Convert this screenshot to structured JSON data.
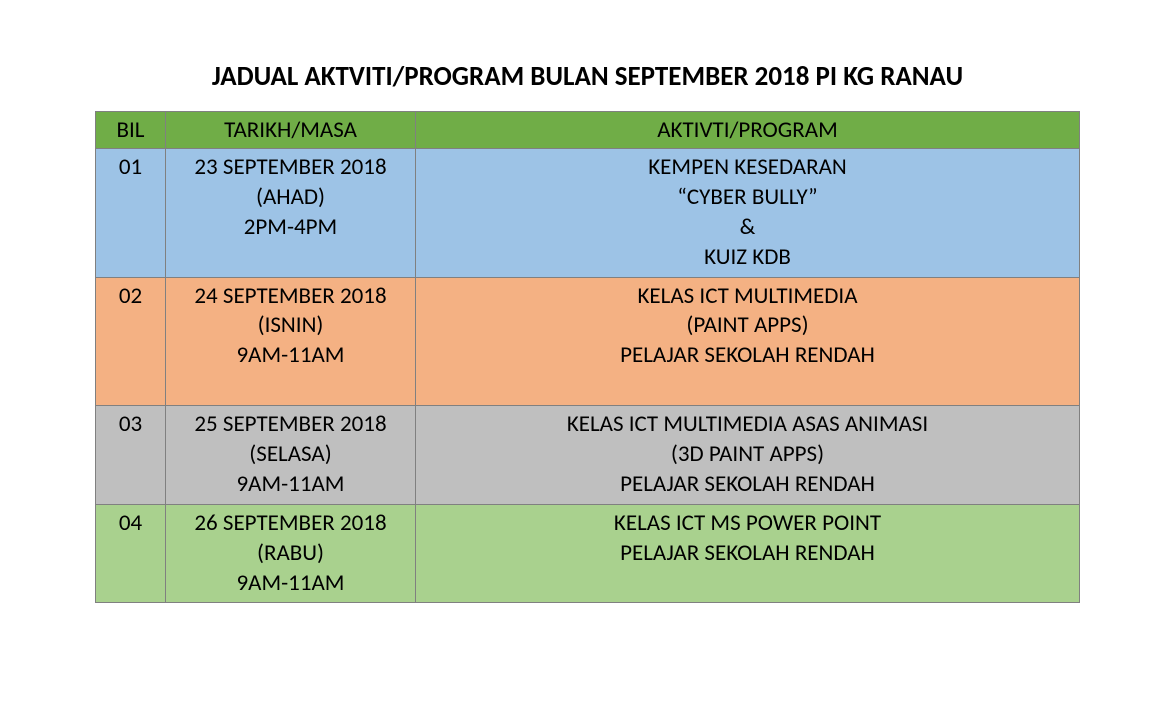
{
  "title": "JADUAL AKTVITI/PROGRAM BULAN SEPTEMBER 2018 PI KG RANAU",
  "headers": {
    "bil": "BIL",
    "date": "TARIKH/MASA",
    "activity": "AKTIVTI/PROGRAM"
  },
  "rows": [
    {
      "bil": "01",
      "date": [
        "23 SEPTEMBER 2018",
        "(AHAD)",
        "2PM-4PM"
      ],
      "activity": [
        "KEMPEN KESEDARAN",
        "“CYBER BULLY”",
        "&",
        "KUIZ KDB"
      ],
      "row_class": "row-blue",
      "bg_color": "#9DC3E6"
    },
    {
      "bil": "02",
      "date": [
        "24 SEPTEMBER 2018",
        "(ISNIN)",
        "9AM-11AM"
      ],
      "activity": [
        "KELAS ICT MULTIMEDIA",
        "(PAINT APPS)",
        "PELAJAR SEKOLAH RENDAH",
        " "
      ],
      "row_class": "row-orange",
      "bg_color": "#F4B183"
    },
    {
      "bil": "03",
      "date": [
        "25 SEPTEMBER 2018",
        "(SELASA)",
        "9AM-11AM"
      ],
      "activity": [
        "KELAS ICT MULTIMEDIA ASAS ANIMASI",
        "(3D PAINT APPS)",
        "PELAJAR SEKOLAH RENDAH"
      ],
      "row_class": "row-gray",
      "bg_color": "#BFBFBF"
    },
    {
      "bil": "04",
      "date": [
        "26 SEPTEMBER 2018",
        "(RABU)",
        "9AM-11AM"
      ],
      "activity": [
        "KELAS ICT MS POWER POINT",
        "PELAJAR SEKOLAH RENDAH",
        " "
      ],
      "row_class": "row-green",
      "bg_color": "#A9D18E"
    }
  ],
  "styling": {
    "header_bg": "#70AD47",
    "border_color": "#808080",
    "title_fontsize": 27,
    "cell_fontsize": 23,
    "font_family": "Calibri",
    "col_widths": {
      "bil": 70,
      "date": 250
    },
    "page_bg": "#ffffff"
  }
}
